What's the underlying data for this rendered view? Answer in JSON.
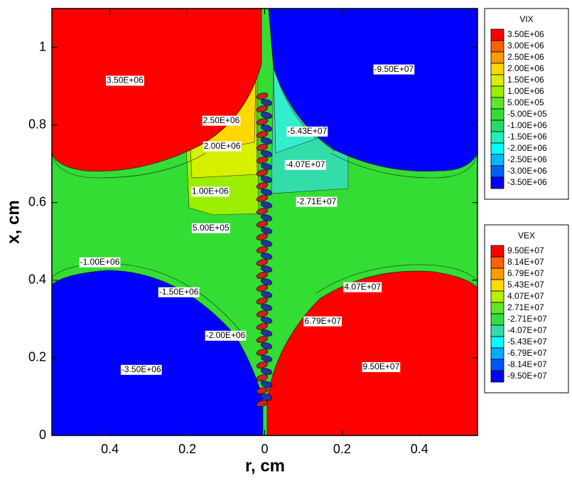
{
  "chart_data": {
    "type": "contour",
    "xlabel": "r, cm",
    "ylabel": "x, cm",
    "xlim": [
      -0.55,
      0.55
    ],
    "ylim": [
      0,
      1.1
    ],
    "xticks": [
      {
        "value": -0.4,
        "label": "0.4"
      },
      {
        "value": -0.2,
        "label": "0.2"
      },
      0,
      {
        "value": 0.2,
        "label": "0.2"
      },
      {
        "value": 0.4,
        "label": "0.4"
      }
    ],
    "yticks": [
      0,
      0.2,
      0.4,
      0.6,
      0.8,
      1
    ],
    "legends": [
      {
        "title": "VIX",
        "levels": [
          {
            "value": 3500000,
            "label": "3.50E+06",
            "color": "#ff0000"
          },
          {
            "value": 3000000,
            "label": "3.00E+06",
            "color": "#ff6000"
          },
          {
            "value": 2500000,
            "label": "2.50E+06",
            "color": "#ff9a00"
          },
          {
            "value": 2000000,
            "label": "2.00E+06",
            "color": "#ffd800"
          },
          {
            "value": 1500000,
            "label": "1.50E+06",
            "color": "#d6f000"
          },
          {
            "value": 1000000,
            "label": "1.00E+06",
            "color": "#9cee00"
          },
          {
            "value": 500000,
            "label": "5.00E+05",
            "color": "#60e628"
          },
          {
            "value": -500000,
            "label": "-5.00E+05",
            "color": "#33dd33"
          },
          {
            "value": -1000000,
            "label": "-1.00E+06",
            "color": "#22dd66"
          },
          {
            "value": -1500000,
            "label": "-1.50E+06",
            "color": "#22eebb"
          },
          {
            "value": -2000000,
            "label": "-2.00E+06",
            "color": "#00ffff"
          },
          {
            "value": -2500000,
            "label": "-2.50E+06",
            "color": "#00b8ff"
          },
          {
            "value": -3000000,
            "label": "-3.00E+06",
            "color": "#0060ff"
          },
          {
            "value": -3500000,
            "label": "-3.50E+06",
            "color": "#0000ff"
          }
        ]
      },
      {
        "title": "VEX",
        "levels": [
          {
            "value": 95000000,
            "label": "9.50E+07",
            "color": "#ff0000"
          },
          {
            "value": 81400000,
            "label": "8.14E+07",
            "color": "#ff6000"
          },
          {
            "value": 67900000,
            "label": "6.79E+07",
            "color": "#ff9a00"
          },
          {
            "value": 54300000,
            "label": "5.43E+07",
            "color": "#ffdc00"
          },
          {
            "value": 40700000,
            "label": "4.07E+07",
            "color": "#b8ee00"
          },
          {
            "value": 27100000,
            "label": "2.71E+07",
            "color": "#60e628"
          },
          {
            "value": -27100000,
            "label": "-2.71E+07",
            "color": "#33dd44"
          },
          {
            "value": -40700000,
            "label": "-4.07E+07",
            "color": "#33ddaa"
          },
          {
            "value": -54300000,
            "label": "-5.43E+07",
            "color": "#00ffff"
          },
          {
            "value": -67900000,
            "label": "-6.79E+07",
            "color": "#00aaff"
          },
          {
            "value": -81400000,
            "label": "-8.14E+07",
            "color": "#0055ff"
          },
          {
            "value": -95000000,
            "label": "-9.50E+07",
            "color": "#0000ff"
          }
        ]
      }
    ],
    "annotations": [
      {
        "text": "3.50E+06",
        "x": -0.361,
        "y": 0.914
      },
      {
        "text": "2.50E+06",
        "x": -0.112,
        "y": 0.811
      },
      {
        "text": "2.00E+06",
        "x": -0.11,
        "y": 0.745
      },
      {
        "text": "1.00E+06",
        "x": -0.141,
        "y": 0.628
      },
      {
        "text": "5.00E+05",
        "x": -0.139,
        "y": 0.534
      },
      {
        "text": "-1.00E+06",
        "x": -0.426,
        "y": 0.446
      },
      {
        "text": "-1.50E+06",
        "x": -0.222,
        "y": 0.369
      },
      {
        "text": "-2.00E+06",
        "x": -0.101,
        "y": 0.257
      },
      {
        "text": "-3.50E+06",
        "x": -0.319,
        "y": 0.169
      },
      {
        "text": "-9.50E+07",
        "x": 0.334,
        "y": 0.943
      },
      {
        "text": "-5.43E+07",
        "x": 0.11,
        "y": 0.783
      },
      {
        "text": "-4.07E+07",
        "x": 0.105,
        "y": 0.697
      },
      {
        "text": "-2.71E+07",
        "x": 0.134,
        "y": 0.602
      },
      {
        "text": "4.07E+07",
        "x": 0.253,
        "y": 0.382
      },
      {
        "text": "6.79E+07",
        "x": 0.15,
        "y": 0.294
      },
      {
        "text": "9.50E+07",
        "x": 0.301,
        "y": 0.176
      }
    ]
  }
}
